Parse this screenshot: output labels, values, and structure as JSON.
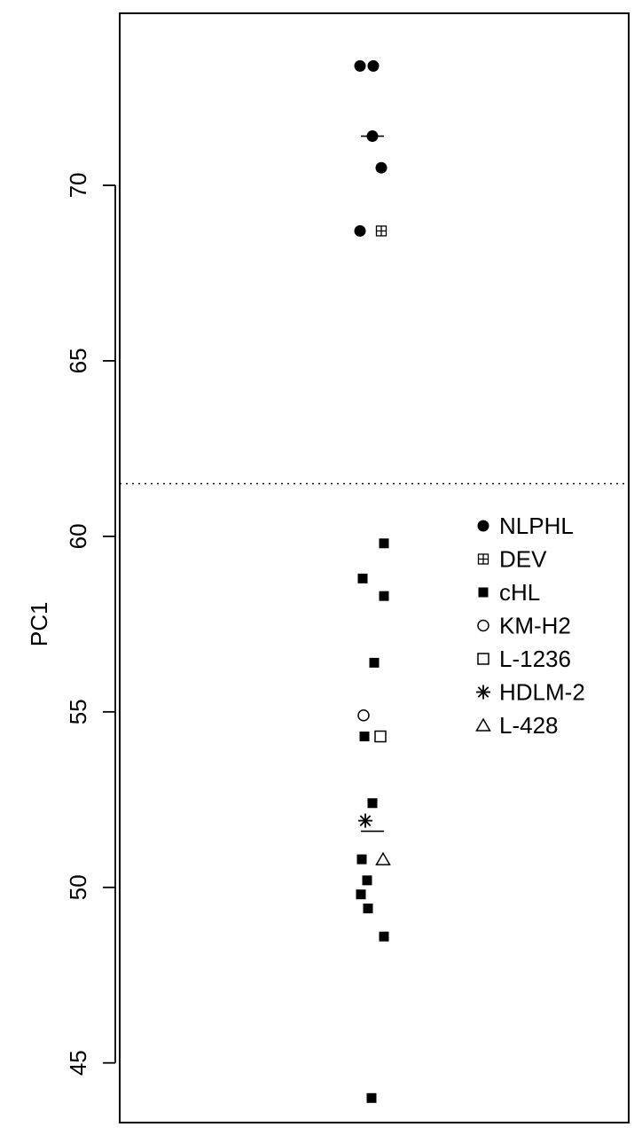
{
  "chart_data": {
    "type": "scatter",
    "title": "",
    "xlabel": "",
    "ylabel": "PC1",
    "ylim": [
      43.3,
      74.9
    ],
    "yticks": [
      45,
      50,
      55,
      60,
      65,
      70
    ],
    "threshold": 61.5,
    "legend_position": "right",
    "series": [
      {
        "name": "NLPHL",
        "marker": "filled-circle",
        "points": [
          {
            "x": -0.28,
            "y": 73.4
          },
          {
            "x": 0.02,
            "y": 73.4
          },
          {
            "x": 0.0,
            "y": 71.4
          },
          {
            "x": 0.2,
            "y": 70.5
          },
          {
            "x": -0.28,
            "y": 68.7
          }
        ],
        "mean": 71.4
      },
      {
        "name": "DEV",
        "marker": "boxed-plus",
        "points": [
          {
            "x": 0.2,
            "y": 68.7
          }
        ]
      },
      {
        "name": "cHL",
        "marker": "filled-square",
        "points": [
          {
            "x": 0.26,
            "y": 59.8
          },
          {
            "x": -0.22,
            "y": 58.8
          },
          {
            "x": 0.26,
            "y": 58.3
          },
          {
            "x": 0.04,
            "y": 56.4
          },
          {
            "x": -0.18,
            "y": 54.3
          },
          {
            "x": 0.0,
            "y": 52.4
          },
          {
            "x": -0.24,
            "y": 50.8
          },
          {
            "x": -0.12,
            "y": 50.2
          },
          {
            "x": -0.26,
            "y": 49.8
          },
          {
            "x": -0.1,
            "y": 49.4
          },
          {
            "x": 0.26,
            "y": 48.6
          },
          {
            "x": -0.02,
            "y": 44.0
          }
        ],
        "mean": 51.6
      },
      {
        "name": "KM-H2",
        "marker": "open-circle",
        "points": [
          {
            "x": -0.2,
            "y": 54.9
          }
        ]
      },
      {
        "name": "L-1236",
        "marker": "open-square",
        "points": [
          {
            "x": 0.18,
            "y": 54.3
          }
        ]
      },
      {
        "name": "HDLM-2",
        "marker": "asterisk",
        "points": [
          {
            "x": -0.16,
            "y": 51.9
          }
        ]
      },
      {
        "name": "L-428",
        "marker": "open-triangle",
        "points": [
          {
            "x": 0.24,
            "y": 50.8
          }
        ]
      }
    ]
  }
}
